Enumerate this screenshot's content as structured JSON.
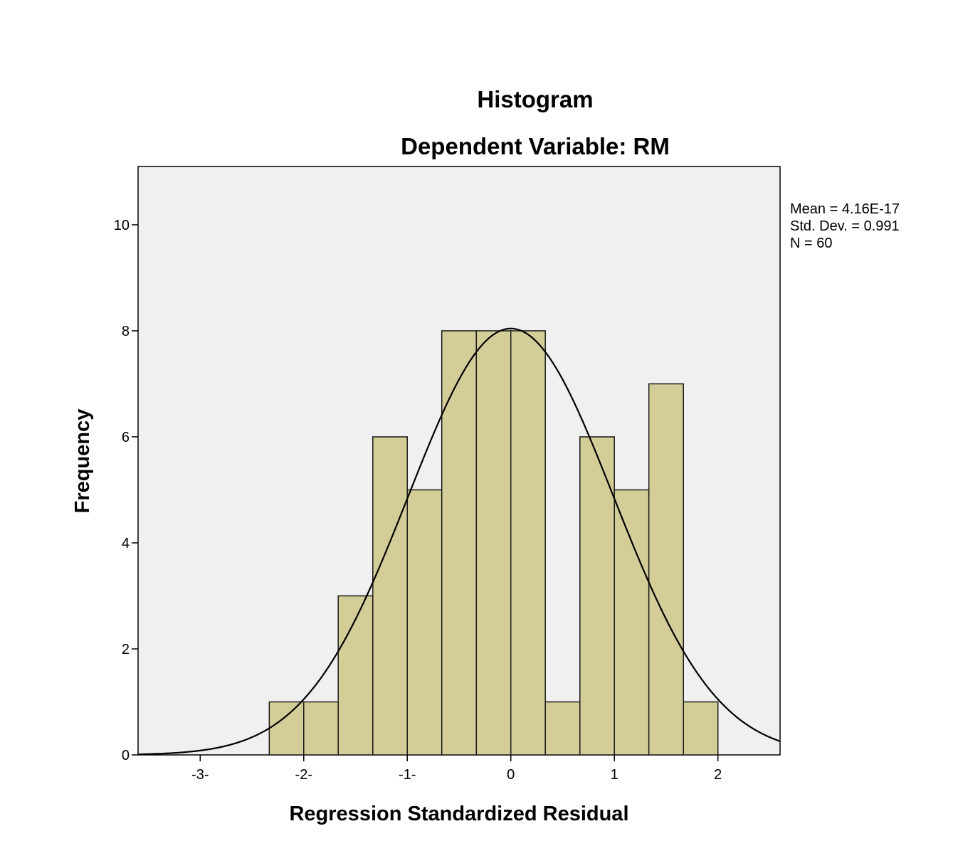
{
  "chart_data": {
    "type": "bar",
    "title": "Histogram",
    "subtitle": "Dependent Variable: RM",
    "xlabel": "Regression Standardized Residual",
    "ylabel": "Frequency",
    "bin_width": 0.333,
    "bin_edges": [
      -2.333,
      -2.0,
      -1.667,
      -1.333,
      -1.0,
      -0.667,
      -0.333,
      0.0,
      0.333,
      0.667,
      1.0,
      1.333,
      1.667,
      2.0
    ],
    "values": [
      1,
      1,
      3,
      6,
      5,
      8,
      8,
      8,
      1,
      6,
      5,
      7,
      1
    ],
    "xlim": [
      -3.6,
      2.6
    ],
    "ylim": [
      0,
      11.1
    ],
    "x_ticks": [
      -3,
      -2,
      -1,
      0,
      1,
      2
    ],
    "x_tick_labels": [
      "-3-",
      "-2-",
      "-1-",
      "0",
      "1",
      "2"
    ],
    "y_ticks": [
      0,
      2,
      4,
      6,
      8,
      10
    ],
    "y_tick_labels": [
      "0",
      "2",
      "4",
      "6",
      "8",
      "10"
    ],
    "grid": false,
    "colors": {
      "bar_fill": "#d3ce98",
      "bar_stroke": "#1a1a1a",
      "plot_bg": "#f0f0f0",
      "curve": "#000000"
    },
    "normal_curve": {
      "mean": 4.16e-17,
      "sd": 0.991,
      "n": 60
    },
    "stats_box": {
      "placement": "top-right",
      "mean": "Mean = 4.16E-17",
      "std_dev": "Std. Dev. = 0.991",
      "n": "N = 60"
    }
  }
}
